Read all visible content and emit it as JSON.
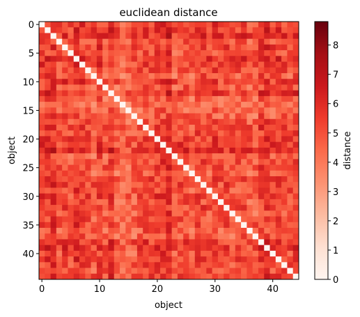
{
  "chart_data": {
    "type": "heatmap",
    "title": "euclidean distance",
    "xlabel": "object",
    "ylabel": "object",
    "n": 45,
    "x_ticks": [
      0,
      10,
      20,
      30,
      40
    ],
    "y_ticks": [
      0,
      5,
      10,
      15,
      20,
      25,
      30,
      35,
      40
    ],
    "colorbar": {
      "label": "distance",
      "range": [
        0,
        8.8
      ],
      "ticks": [
        0,
        1,
        2,
        3,
        4,
        5,
        6,
        7,
        8
      ],
      "colormap": "Reds"
    },
    "diagonal_value": 0,
    "row_scale": [
      5.6,
      6.0,
      6.4,
      4.8,
      5.6,
      4.9,
      6.2,
      5.6,
      5.2,
      4.4,
      5.6,
      4.5,
      6.0,
      4.2,
      3.6,
      3.7,
      4.2,
      4.8,
      5.4,
      5.2,
      5.8,
      6.0,
      6.6,
      4.4,
      4.9,
      5.0,
      4.4,
      5.2,
      5.4,
      5.0,
      5.4,
      4.8,
      5.0,
      4.6,
      5.0,
      5.2,
      4.4,
      4.3,
      5.8,
      6.0,
      5.0,
      5.6,
      5.0,
      4.8,
      5.6
    ]
  }
}
